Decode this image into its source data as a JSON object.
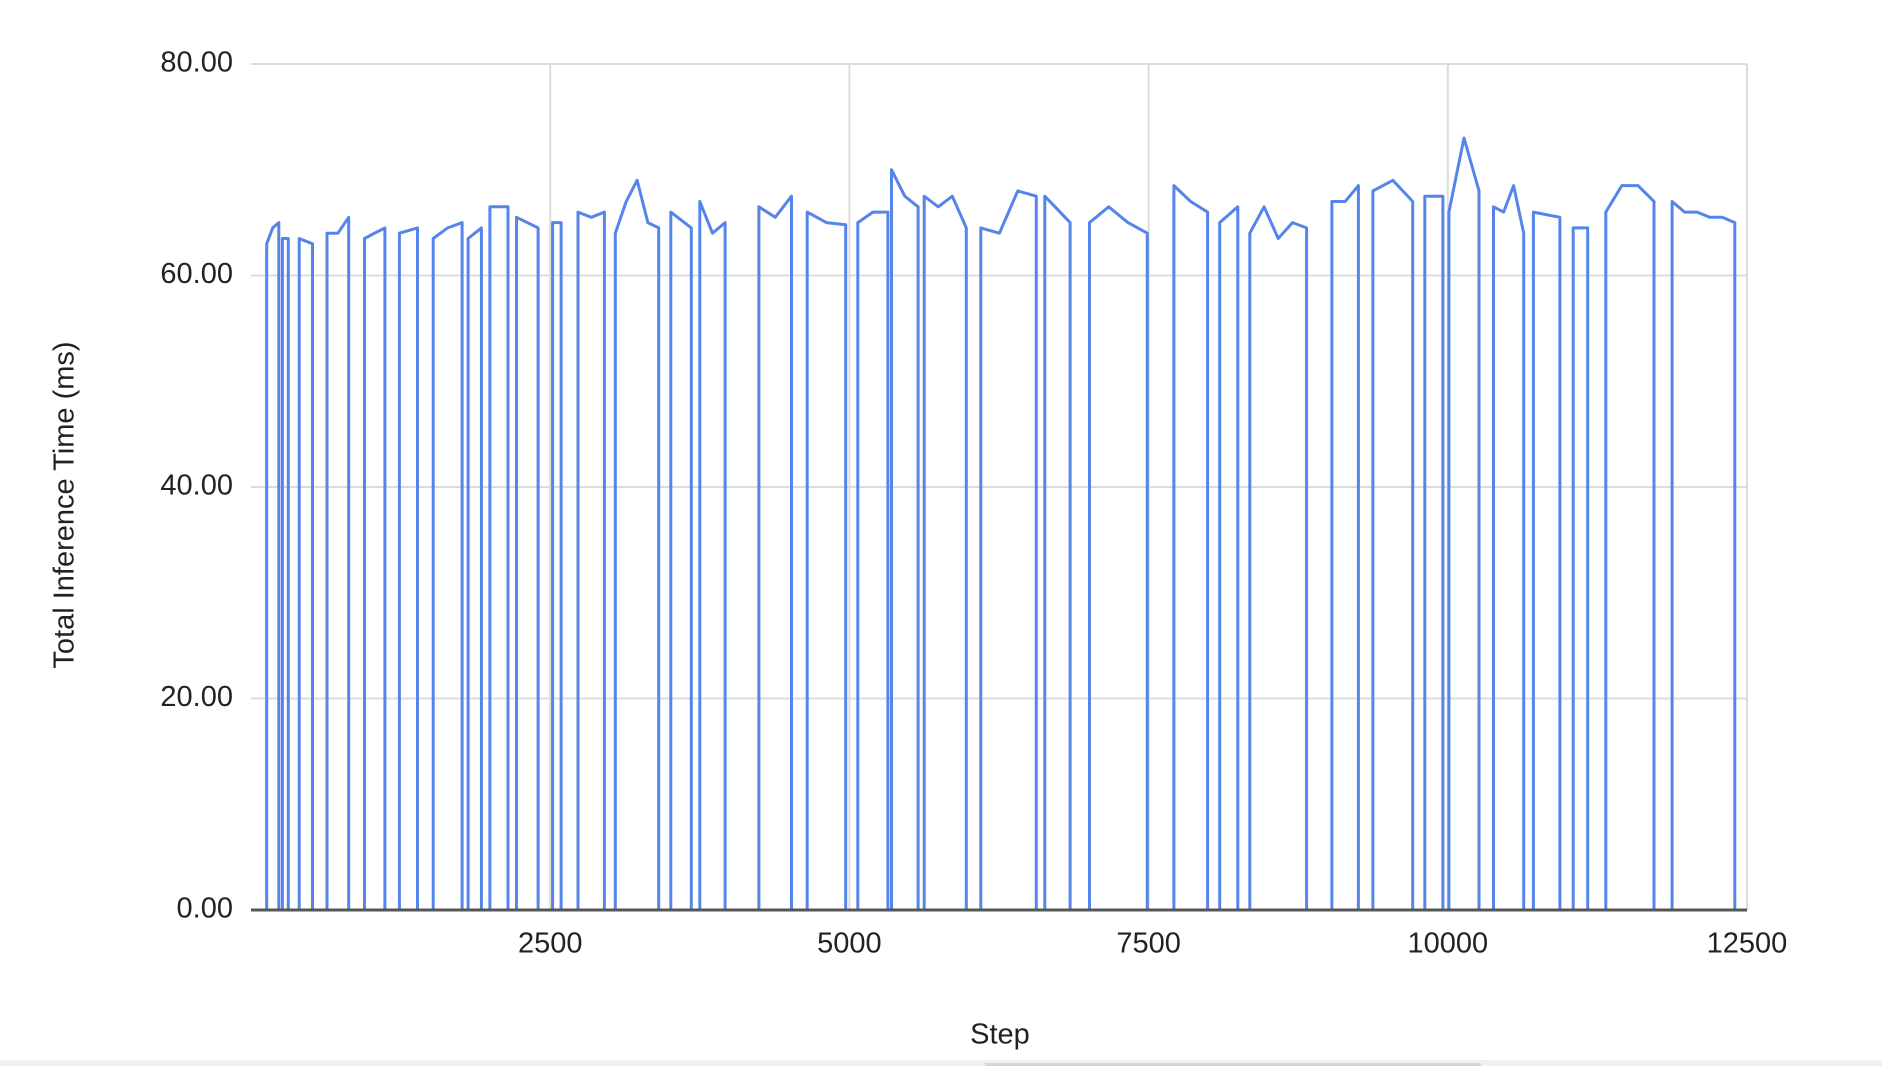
{
  "chart_data": {
    "type": "line",
    "xlabel": "Step",
    "ylabel": "Total Inference Time (ms)",
    "xlim": [
      0,
      12500
    ],
    "xticks": [
      2500,
      5000,
      7500,
      10000,
      12500
    ],
    "ylim": [
      0,
      80
    ],
    "yticks": [
      {
        "value": 0,
        "label": "0.00"
      },
      {
        "value": 20,
        "label": "20.00"
      },
      {
        "value": 40,
        "label": "40.00"
      },
      {
        "value": 60,
        "label": "60.00"
      },
      {
        "value": 80,
        "label": "80.00"
      }
    ],
    "grid": true,
    "series": [
      {
        "color": "#5585ea",
        "x": [
          131,
          131,
          181,
          232,
          232,
          262,
          262,
          312,
          312,
          403,
          403,
          514,
          514,
          635,
          635,
          726,
          816,
          816,
          948,
          948,
          1033,
          1119,
          1119,
          1240,
          1240,
          1391,
          1391,
          1522,
          1522,
          1643,
          1764,
          1764,
          1814,
          1814,
          1925,
          1925,
          1996,
          1996,
          2147,
          2147,
          2218,
          2218,
          2399,
          2399,
          2520,
          2520,
          2591,
          2591,
          2732,
          2732,
          2843,
          2953,
          2953,
          3044,
          3044,
          3135,
          3226,
          3316,
          3407,
          3407,
          3508,
          3508,
          3679,
          3679,
          3750,
          3750,
          3856,
          3961,
          3961,
          4244,
          4244,
          4380,
          4516,
          4516,
          4647,
          4647,
          4808,
          4969,
          4969,
          5070,
          5070,
          5196,
          5322,
          5322,
          5352,
          5352,
          5463,
          5574,
          5574,
          5625,
          5625,
          5742,
          5860,
          5977,
          5977,
          6098,
          6098,
          6253,
          6407,
          6562,
          6562,
          6633,
          6633,
          6844,
          6844,
          7006,
          7006,
          7167,
          7328,
          7489,
          7489,
          7711,
          7711,
          7852,
          7993,
          7993,
          8094,
          8094,
          8245,
          8245,
          8346,
          8346,
          8465,
          8583,
          8702,
          8820,
          8820,
          9032,
          9032,
          9143,
          9253,
          9253,
          9374,
          9374,
          9541,
          9707,
          9707,
          9808,
          9808,
          9959,
          9959,
          10009,
          10009,
          10135,
          10261,
          10261,
          10382,
          10382,
          10466,
          10550,
          10634,
          10634,
          10715,
          10715,
          10937,
          10937,
          11048,
          11048,
          11169,
          11169,
          11320,
          11320,
          11454,
          11589,
          11723,
          11723,
          11874,
          11874,
          11979,
          12084,
          12188,
          12293,
          12398,
          12398
        ],
        "values": [
          0,
          63,
          64.5,
          65,
          0,
          0,
          63.5,
          63.5,
          0,
          0,
          63.5,
          63,
          0,
          0,
          64,
          64,
          65.5,
          0,
          0,
          63.5,
          64,
          64.5,
          0,
          0,
          64,
          64.5,
          0,
          0,
          63.5,
          64.5,
          65,
          0,
          0,
          63.5,
          64.5,
          0,
          0,
          66.5,
          66.5,
          0,
          0,
          65.5,
          64.5,
          0,
          0,
          65,
          65,
          0,
          0,
          66,
          65.5,
          66,
          0,
          0,
          64,
          67,
          69,
          65,
          64.5,
          0,
          0,
          66,
          64.5,
          0,
          0,
          67,
          64,
          65,
          0,
          0,
          66.5,
          65.5,
          67.5,
          0,
          0,
          66,
          65,
          64.8,
          0,
          0,
          65,
          66,
          66,
          0,
          0,
          70,
          67.5,
          66.5,
          0,
          0,
          67.5,
          66.5,
          67.5,
          64.5,
          0,
          0,
          64.5,
          64,
          68,
          67.5,
          0,
          0,
          67.5,
          65,
          0,
          0,
          65,
          66.5,
          65,
          64,
          0,
          0,
          68.5,
          67,
          66,
          0,
          0,
          65,
          66.5,
          0,
          0,
          64,
          66.5,
          63.5,
          65,
          64.5,
          0,
          0,
          67,
          67,
          68.5,
          0,
          0,
          68,
          69,
          67,
          0,
          0,
          67.5,
          67.5,
          0,
          0,
          66,
          73,
          68,
          0,
          0,
          66.5,
          66,
          68.5,
          64,
          0,
          0,
          66,
          65.5,
          0,
          0,
          64.5,
          64.5,
          0,
          0,
          66,
          68.5,
          68.5,
          67,
          0,
          0,
          67,
          66,
          66,
          65.5,
          65.5,
          65,
          0
        ]
      }
    ]
  }
}
